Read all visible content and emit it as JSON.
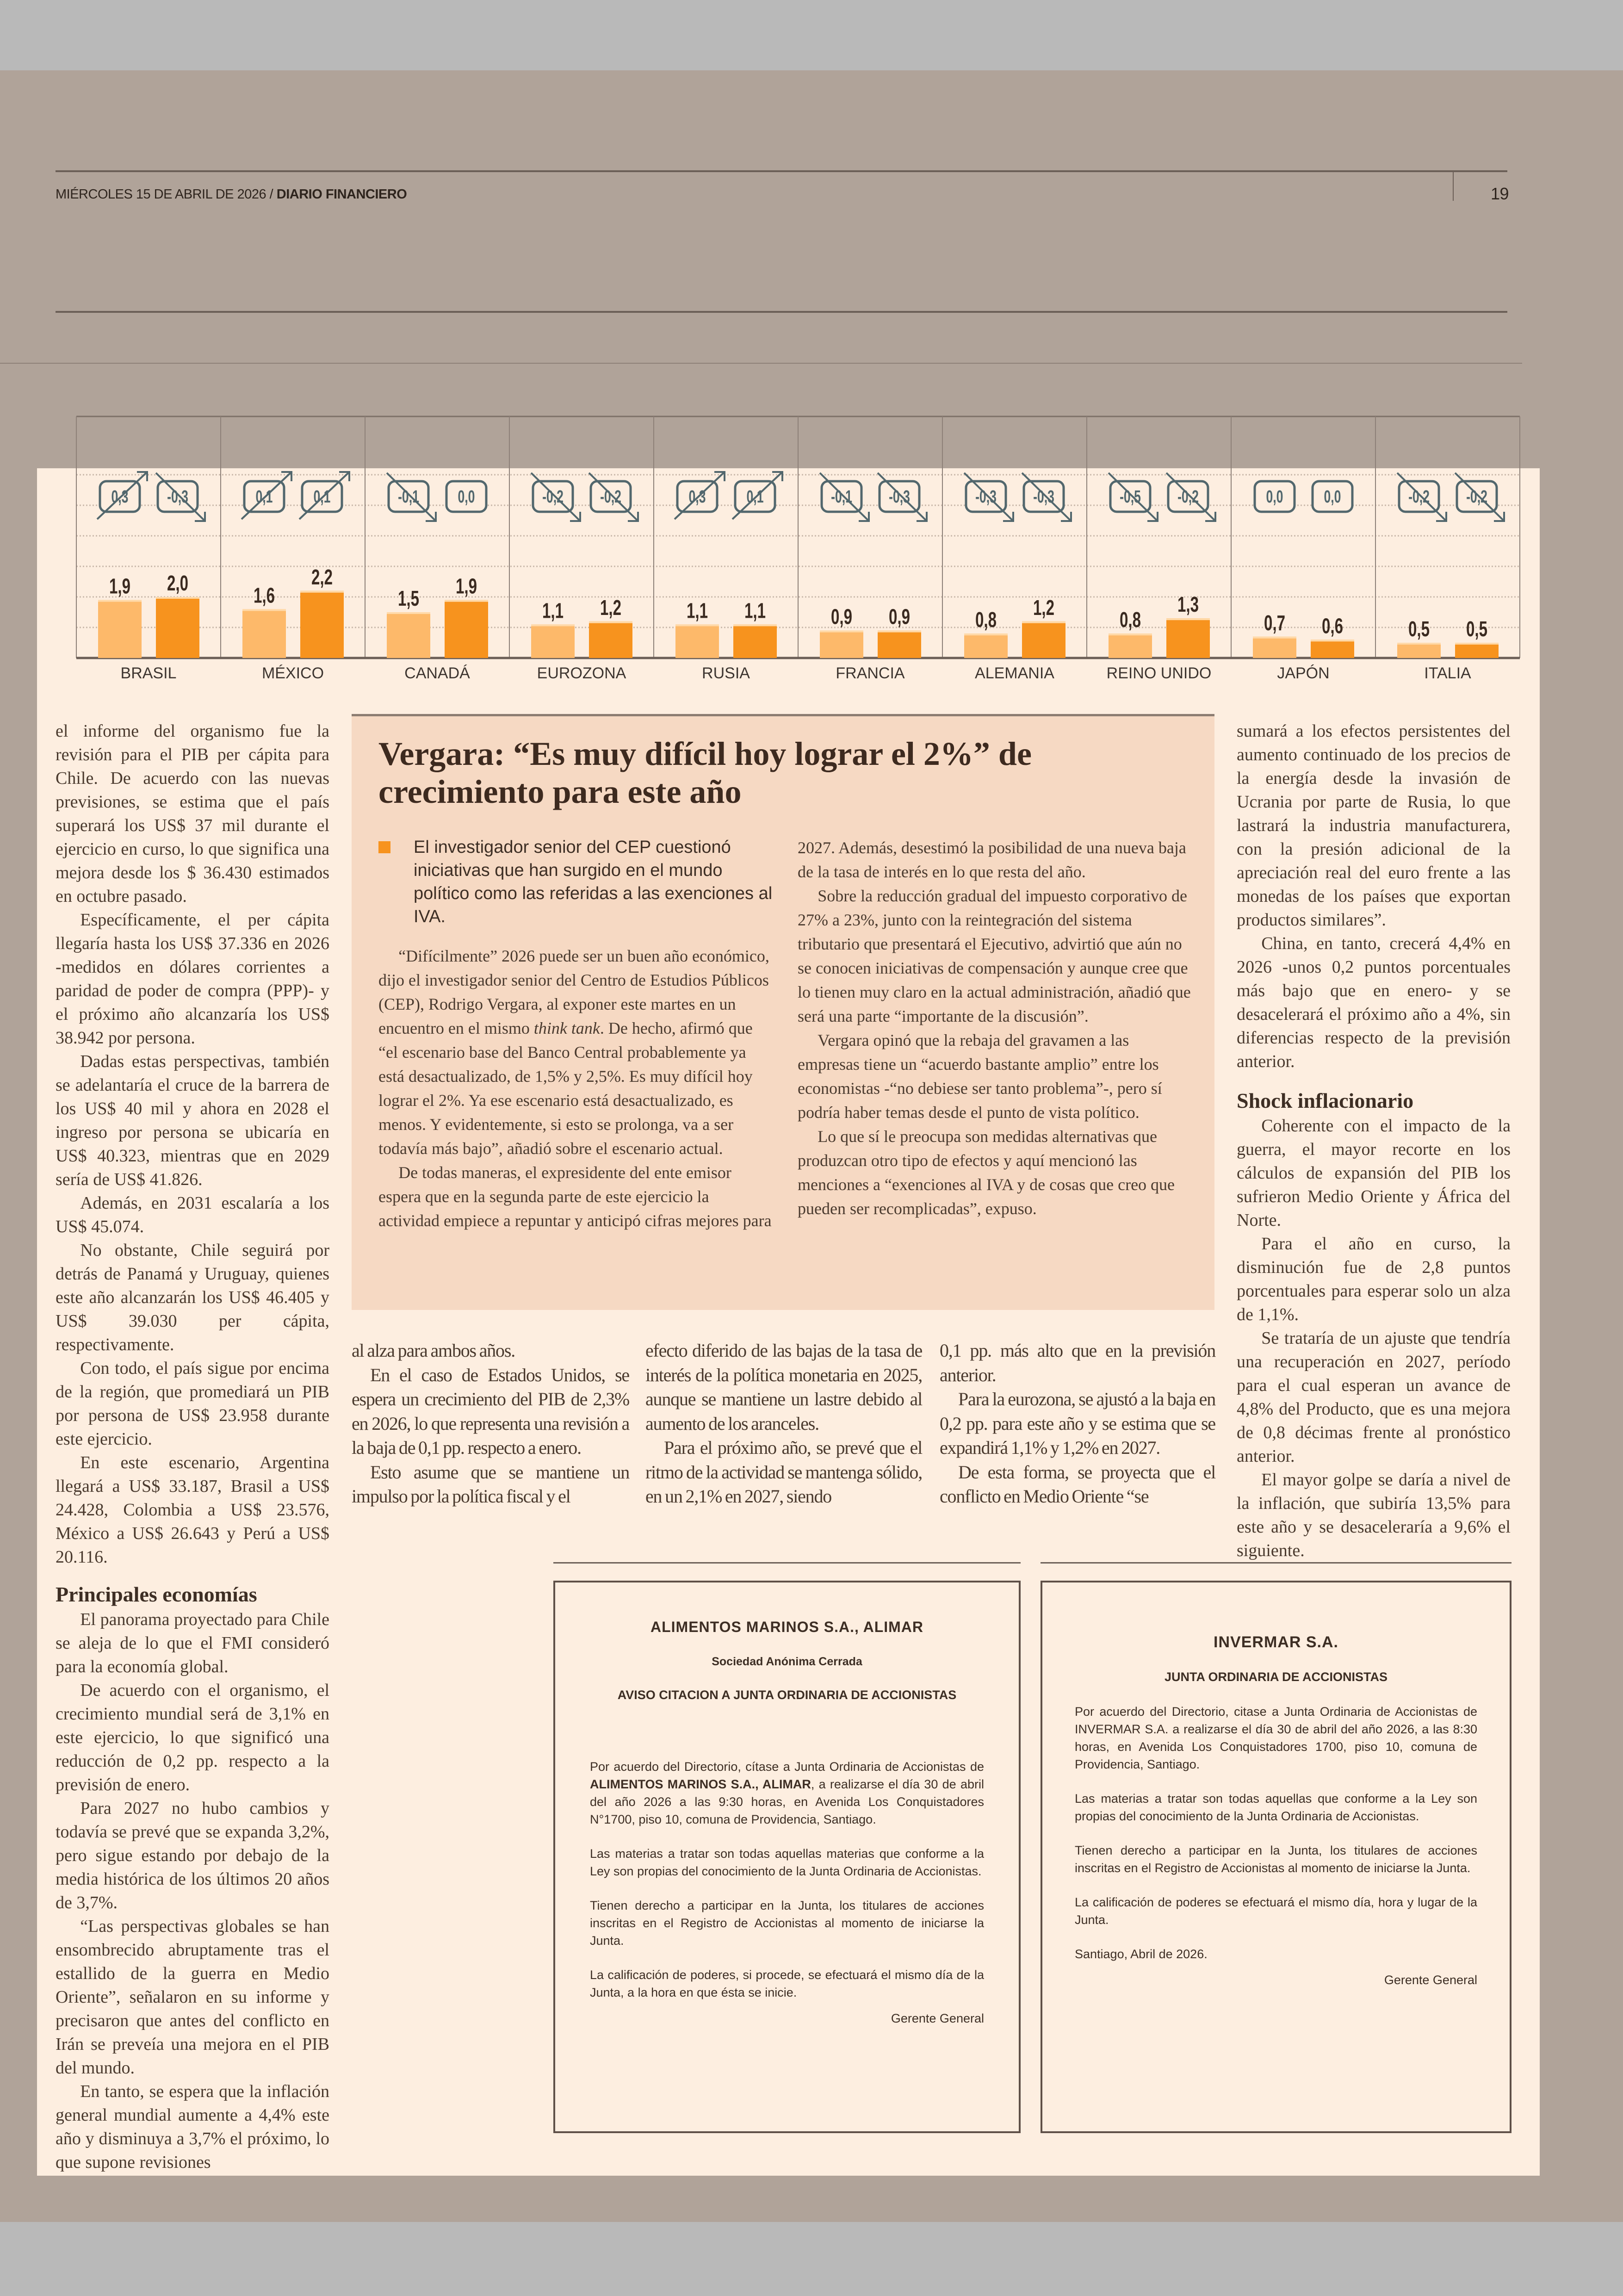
{
  "header": {
    "date": "MIÉRCOLES 15 DE ABRIL DE 2026 / ",
    "paper": "DIARIO FINANCIERO",
    "page_number": "19"
  },
  "colors": {
    "bar_light": "#fdb96a",
    "bar_dark": "#f7931e",
    "badge": "#52676d",
    "panel": "#fdeee0",
    "box": "#f6d9c3",
    "page": "#b0a399"
  },
  "chart_data": {
    "type": "bar",
    "categories": [
      "BRASIL",
      "MÉXICO",
      "CANADÁ",
      "EUROZONA",
      "RUSIA",
      "FRANCIA",
      "ALEMANIA",
      "REINO UNIDO",
      "JAPÓN",
      "ITALIA"
    ],
    "series": [
      {
        "values": [
          1.9,
          1.6,
          1.5,
          1.1,
          1.1,
          0.9,
          0.8,
          0.8,
          0.7,
          0.5
        ],
        "labels": [
          "1,9",
          "1,6",
          "1,5",
          "1,1",
          "1,1",
          "0,9",
          "0,8",
          "0,8",
          "0,7",
          "0,5"
        ],
        "color": "#fdb96a"
      },
      {
        "values": [
          2.0,
          2.2,
          1.9,
          1.2,
          1.1,
          0.9,
          1.2,
          1.3,
          0.6,
          0.5
        ],
        "labels": [
          "2,0",
          "2,2",
          "1,9",
          "1,2",
          "1,1",
          "0,9",
          "1,2",
          "1,3",
          "0,6",
          "0,5"
        ],
        "color": "#f7931e"
      }
    ],
    "revisions": [
      [
        {
          "label": "0,3",
          "direction": "up"
        },
        {
          "label": "-0,3",
          "direction": "down"
        }
      ],
      [
        {
          "label": "0,1",
          "direction": "up"
        },
        {
          "label": "0,1",
          "direction": "up"
        }
      ],
      [
        {
          "label": "-0,1",
          "direction": "down"
        },
        {
          "label": "0,0",
          "direction": "none"
        }
      ],
      [
        {
          "label": "-0,2",
          "direction": "down"
        },
        {
          "label": "-0,2",
          "direction": "down"
        }
      ],
      [
        {
          "label": "0,3",
          "direction": "up"
        },
        {
          "label": "0,1",
          "direction": "up"
        }
      ],
      [
        {
          "label": "-0,1",
          "direction": "down"
        },
        {
          "label": "-0,3",
          "direction": "down"
        }
      ],
      [
        {
          "label": "-0,3",
          "direction": "down"
        },
        {
          "label": "-0,3",
          "direction": "down"
        }
      ],
      [
        {
          "label": "-0,5",
          "direction": "down"
        },
        {
          "label": "-0,2",
          "direction": "down"
        }
      ],
      [
        {
          "label": "0,0",
          "direction": "none"
        },
        {
          "label": "0,0",
          "direction": "none"
        }
      ],
      [
        {
          "label": "-0,2",
          "direction": "down"
        },
        {
          "label": "-0,2",
          "direction": "down"
        }
      ]
    ],
    "ylim": [
      0,
      6
    ],
    "grid": true,
    "title": "",
    "xlabel": "",
    "ylabel": ""
  },
  "col1": {
    "paras": [
      "el informe del organismo fue la revisión para el PIB per cápita para Chile. De acuerdo con las nuevas previsiones, se estima que el país superará los US$ 37 mil durante el ejercicio en curso, lo que significa una mejora desde los $ 36.430 estimados en octubre pasado.",
      "Específicamente, el per cápita llegaría hasta los US$ 37.336 en 2026 -medidos en dólares corrientes a paridad de poder de compra (PPP)- y el próximo año alcanzaría los US$ 38.942 por persona.",
      "Dadas estas perspectivas, también se adelantaría el cruce de la barrera de los US$ 40 mil y ahora en 2028 el ingreso por persona se ubicaría en US$ 40.323, mientras que en 2029 sería de US$ 41.826.",
      "Además, en 2031 escalaría a los US$ 45.074.",
      "No obstante, Chile seguirá por detrás de Panamá y Uruguay, quienes este año alcanzarán los US$ 46.405 y US$ 39.030 per cápita, respectivamente.",
      "Con todo, el país sigue por encima de la región, que promediará un PIB por persona de US$ 23.958 durante este ejercicio.",
      "En este escenario, Argentina llegará a US$ 33.187, Brasil a US$ 24.428, Colombia a US$ 23.576, México a US$ 26.643 y Perú a US$ 20.116."
    ],
    "heading": "Principales economías",
    "paras2": [
      "El panorama proyectado para Chile se aleja de lo que el FMI consideró para la economía global.",
      "De acuerdo con el organismo, el crecimiento mundial será de 3,1% en este ejercicio, lo que significó una reducción de 0,2 pp. respecto a la previsión de enero.",
      "Para 2027 no hubo cambios y todavía se prevé que se expanda 3,2%, pero sigue estando por debajo de la media histórica de los últimos 20 años de 3,7%.",
      "“Las perspectivas globales se han ensombrecido abruptamente tras el estallido de la guerra en Medio Oriente”, señalaron en su informe y precisaron que antes del conflicto en Irán se preveía una mejora en el PIB del mundo.",
      "En tanto, se espera que la inflación general mundial aumente a 4,4% este año y disminuya a 3,7% el próximo, lo que supone revisiones"
    ]
  },
  "box": {
    "title": "Vergara: “Es muy difícil hoy lograr el 2%” de crecimiento para este año",
    "lead": "El investigador senior del CEP cuestionó iniciativas que han surgido en el mundo político como las referidas a las exenciones al IVA.",
    "p1_a": "“Difícilmente” 2026 puede ser un buen año económico, dijo el investigador senior del Centro de Estudios Públicos (CEP), Rodrigo Vergara, al exponer este martes en un encuentro en el mismo ",
    "p1_italic": "think tank",
    "p1_b": ". De hecho, afirmó que “el escenario base del Banco Central probablemente ya está desactualizado, de 1,5% y 2,5%. Es muy difícil hoy lograr el 2%. Ya ese escenario está desactualizado, es menos. Y evidentemente, si esto se prolonga, va a ser todavía más bajo”, añadió sobre el escenario actual.",
    "paras": [
      "De todas maneras, el expresidente del ente emisor espera que en la segunda parte de este ejercicio la actividad empiece a repuntar y anticipó cifras mejores para 2027. Además, desestimó la posibilidad de una nueva baja de la tasa de interés en lo que resta del año.",
      "Sobre la reducción gradual del impuesto corporativo de 27% a 23%, junto con la reintegración del sistema tributario que presentará el Ejecutivo, advirtió que aún no se conocen iniciativas de compensación y aunque cree que lo tienen muy claro en la actual administración, añadió que será una parte “importante de la discusión”.",
      "Vergara opinó que la rebaja del gravamen a las empresas tiene un “acuerdo bastante amplio” entre los economistas -“no debiese ser tanto problema”-, pero sí podría haber temas desde el punto de vista político.",
      "Lo que sí le preocupa son medidas alternativas que produzcan otro tipo de efectos y aquí mencionó las menciones a “exenciones al IVA y de cosas que creo que pueden ser recomplicadas”, expuso."
    ]
  },
  "lower": {
    "c1": [
      "al alza para ambos años.",
      "En el caso de Estados Unidos, se espera un crecimiento del PIB de 2,3% en 2026, lo que representa una revisión a la baja de 0,1 pp. respecto a enero.",
      "Esto asume que se mantiene un impulso por la política fiscal y el"
    ],
    "c2": [
      "efecto diferido de las bajas de la tasa de interés de la política monetaria en 2025, aunque se mantiene un lastre debido al aumento de los aranceles.",
      "Para el próximo año, se prevé que el ritmo de la actividad se mantenga sólido, en un 2,1% en 2027, siendo"
    ],
    "c3": [
      "0,1 pp. más alto que en la previsión anterior.",
      "Para la eurozona, se ajustó a la baja en 0,2 pp. para este año y se estima que se expandirá 1,1% y 1,2% en 2027.",
      "De esta forma, se proyecta que el conflicto en Medio Oriente “se"
    ]
  },
  "right": {
    "paras": [
      "sumará a los efectos persistentes del aumento continuado de los precios de la energía desde la invasión de Ucrania por parte de Rusia, lo que lastrará la industria manufacturera, con la presión adicional de la apreciación real del euro frente a las monedas de los países que exportan productos similares”.",
      "China, en tanto, crecerá 4,4% en 2026 -unos 0,2 puntos porcentuales más bajo que en enero- y se desacelerará el próximo año a 4%, sin diferencias respecto de la previsión anterior."
    ],
    "heading": "Shock inflacionario",
    "paras2": [
      "Coherente con el impacto de la guerra, el mayor recorte en los cálculos de expansión del PIB los sufrieron Medio Oriente y África del Norte.",
      "Para el año en curso, la disminución fue de 2,8 puntos porcentuales para esperar solo un alza de 1,1%.",
      "Se trataría de un ajuste que tendría una recuperación en 2027, período para el cual esperan un avance de 4,8% del Producto, que es una mejora de 0,8 décimas frente al pronóstico anterior.",
      "El mayor golpe se daría a nivel de la inflación, que subiría 13,5% para este año y se desaceleraría a 9,6% el siguiente."
    ]
  },
  "ad1": {
    "company": "ALIMENTOS MARINOS S.A., ALIMAR",
    "type": "Sociedad Anónima Cerrada",
    "notice": "AVISO CITACION A JUNTA ORDINARIA DE ACCIONISTAS",
    "p1_a": "Por acuerdo del Directorio, cítase a Junta Ordinaria de Accionistas de ",
    "p1_bold": "ALIMENTOS MARINOS S.A., ALIMAR",
    "p1_b": ", a realizarse el día 30 de abril del año 2026 a las 9:30 horas, en Avenida Los Conquistadores N°1700, piso 10, comuna de Providencia, Santiago.",
    "p2": "Las materias a tratar son todas aquellas materias que conforme a la Ley son propias del conocimiento de la Junta Ordinaria de Accionistas.",
    "p3": "Tienen derecho a participar en la Junta, los titulares de acciones inscritas en el Registro de Accionistas al momento de iniciarse la Junta.",
    "p4": "La calificación de poderes, si procede, se efectuará el mismo día de la Junta, a la hora en que ésta se inicie.",
    "signature": "Gerente General"
  },
  "ad2": {
    "company": "INVERMAR S.A.",
    "notice": "JUNTA ORDINARIA DE ACCIONISTAS",
    "p1": "Por acuerdo del Directorio, citase a Junta Ordinaria de Accionistas de  INVERMAR S.A. a realizarse el día  30 de abril del año 2026, a las 8:30 horas, en Avenida Los Conquistadores 1700, piso 10, comuna de Providencia, Santiago.",
    "p2": "Las materias a tratar son todas aquellas que conforme a la Ley son propias del conocimiento de la Junta Ordinaria de Accionistas.",
    "p3": "Tienen derecho a participar en la Junta, los titulares de acciones inscritas en el Registro de Accionistas al momento de iniciarse la Junta.",
    "p4": "La calificación de poderes se efectuará el mismo día, hora y lugar de la Junta.",
    "date": "Santiago, Abril de 2026.",
    "signature": "Gerente General"
  }
}
